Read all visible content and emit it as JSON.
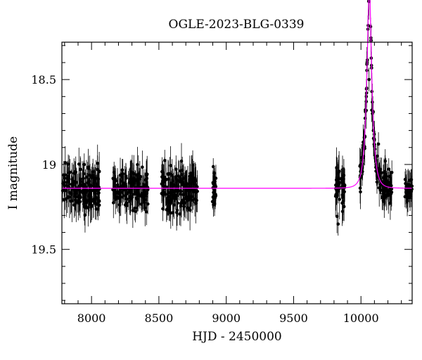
{
  "chart_data": {
    "type": "scatter",
    "title": "OGLE-2023-BLG-0339",
    "xlabel": "HJD - 2450000",
    "ylabel": "I magnitude",
    "xlim": [
      7780,
      10380
    ],
    "ylim": [
      19.82,
      18.28
    ],
    "y_inverted": true,
    "x_ticks": [
      8000,
      8500,
      9000,
      9500,
      10000
    ],
    "x_tick_labels": [
      "8000",
      "8500",
      "9000",
      "9500",
      "10000"
    ],
    "y_ticks": [
      18.5,
      19,
      19.5
    ],
    "y_tick_labels": [
      "18.5",
      "19",
      "19.5"
    ],
    "x_minor_step": 100,
    "y_minor_step": 0.1,
    "grid": false,
    "baseline_mag": 19.14,
    "observing_seasons": [
      {
        "start": 7785,
        "end": 8060,
        "scatter": 0.09,
        "error": 0.09
      },
      {
        "start": 8155,
        "end": 8420,
        "scatter": 0.08,
        "error": 0.08
      },
      {
        "start": 8520,
        "end": 8790,
        "scatter": 0.09,
        "error": 0.09
      },
      {
        "start": 8890,
        "end": 8930,
        "scatter": 0.07,
        "error": 0.06
      },
      {
        "start": 9810,
        "end": 9880,
        "scatter": 0.12,
        "error": 0.1
      },
      {
        "start": 9990,
        "end": 10230,
        "scatter": 0.07,
        "error": 0.08
      },
      {
        "start": 10325,
        "end": 10380,
        "scatter": 0.05,
        "error": 0.07
      }
    ],
    "peak_region": [
      {
        "x": 10040,
        "y": 18.6
      },
      {
        "x": 10060,
        "y": 18.5
      },
      {
        "x": 10080,
        "y": 18.68
      },
      {
        "x": 10130,
        "y": 18.88
      },
      {
        "x": 10180,
        "y": 18.98
      }
    ],
    "model_curve": {
      "color": "#ff00ff",
      "t0": 10062,
      "tE": 36,
      "u0": 0.35,
      "baseline_mag": 19.14
    },
    "series": [
      {
        "type": "scatter",
        "marker": "filled-circle",
        "color": "#000000",
        "error_bars": true
      },
      {
        "type": "line",
        "color": "#ff00ff"
      }
    ]
  }
}
